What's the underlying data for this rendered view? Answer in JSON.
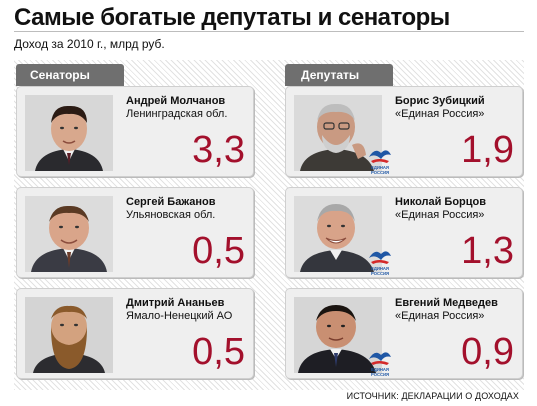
{
  "title": "Самые богатые депутаты и сенаторы",
  "subtitle": "Доход за 2010 г., млрд руб.",
  "tabs": {
    "senators": "Сенаторы",
    "deputies": "Депутаты"
  },
  "senators": [
    {
      "name": "Андрей Молчанов",
      "region": "Ленинградская обл.",
      "value": "3,3"
    },
    {
      "name": "Сергей Бажанов",
      "region": "Ульяновская обл.",
      "value": "0,5"
    },
    {
      "name": "Дмитрий Ананьев",
      "region": "Ямало-Ненецкий АО",
      "value": "0,5"
    }
  ],
  "deputies": [
    {
      "name": "Борис Зубицкий",
      "party": "«Единая Россия»",
      "value": "1,9"
    },
    {
      "name": "Николай Борцов",
      "party": "«Единая Россия»",
      "value": "1,3"
    },
    {
      "name": "Евгений Медведев",
      "party": "«Единая Россия»",
      "value": "0,9"
    }
  ],
  "logo_text": "ЕДИНАЯ РОССИЯ",
  "footer": "ИСТОЧНИК: ДЕКЛАРАЦИИ О ДОХОДАХ",
  "colors": {
    "value": "#a3102c",
    "tab": "#6f6f6f",
    "card": "#efefef",
    "logo_blue": "#1f57a5",
    "logo_red": "#d42a2a"
  }
}
